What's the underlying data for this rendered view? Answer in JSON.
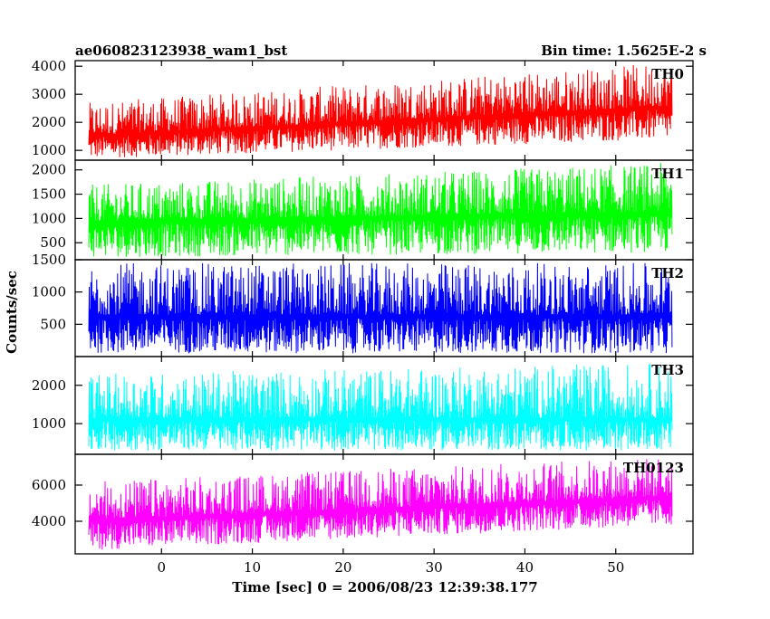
{
  "header": {
    "left": "ae060823123938_wam1_bst",
    "right": "Bin time: 1.5625E-2 s"
  },
  "chart_data": {
    "type": "line",
    "title": "ae060823123938_wam1_bst",
    "subtitle": "Bin time: 1.5625E-2 s",
    "xlabel": "Time [sec] 0 = 2006/08/23 12:39:38.177",
    "ylabel": "Counts/sec",
    "xlim": [
      -9.5,
      58.5
    ],
    "x_range_data": [
      -8,
      56.2
    ],
    "x_ticks": [
      0,
      10,
      20,
      30,
      40,
      50
    ],
    "x_tick_labels": [
      "0",
      "10",
      "20",
      "30",
      "40",
      "50"
    ],
    "grid": false,
    "panels": [
      {
        "name": "TH0",
        "color": "#ff0000",
        "ylim": [
          650,
          4200
        ],
        "y_ticks": [
          1000,
          2000,
          3000,
          4000
        ],
        "y_tick_labels": [
          "1000",
          "2000",
          "3000",
          "4000"
        ],
        "mean_start": 1550,
        "mean_end": 2600,
        "low_start": 700,
        "low_end": 1400,
        "high_start": 2700,
        "high_end": 4150
      },
      {
        "name": "TH1",
        "color": "#00ff00",
        "ylim": [
          150,
          2200
        ],
        "y_ticks": [
          500,
          1000,
          1500,
          2000
        ],
        "y_tick_labels": [
          "500",
          "1000",
          "1500",
          "2000"
        ],
        "mean_start": 950,
        "mean_end": 1150,
        "low_start": 200,
        "low_end": 300,
        "high_start": 1700,
        "high_end": 2150
      },
      {
        "name": "TH2",
        "color": "#0000ff",
        "ylim": [
          0,
          1500
        ],
        "y_ticks": [
          500,
          1000,
          1500
        ],
        "y_tick_labels": [
          "500",
          "1000",
          "1500"
        ],
        "mean_start": 650,
        "mean_end": 650,
        "low_start": 50,
        "low_end": 50,
        "high_start": 1450,
        "high_end": 1450
      },
      {
        "name": "TH3",
        "color": "#00ffff",
        "ylim": [
          200,
          2750
        ],
        "y_ticks": [
          1000,
          2000
        ],
        "y_tick_labels": [
          "1000",
          "2000"
        ],
        "mean_start": 1150,
        "mean_end": 1150,
        "low_start": 300,
        "low_end": 300,
        "high_start": 2300,
        "high_end": 2600
      },
      {
        "name": "TH0123",
        "color": "#ff00ff",
        "ylim": [
          2200,
          7700
        ],
        "y_ticks": [
          4000,
          6000
        ],
        "y_tick_labels": [
          "4000",
          "6000"
        ],
        "mean_start": 4100,
        "mean_end": 5400,
        "low_start": 2400,
        "low_end": 3800,
        "high_start": 6200,
        "high_end": 7600
      }
    ]
  }
}
